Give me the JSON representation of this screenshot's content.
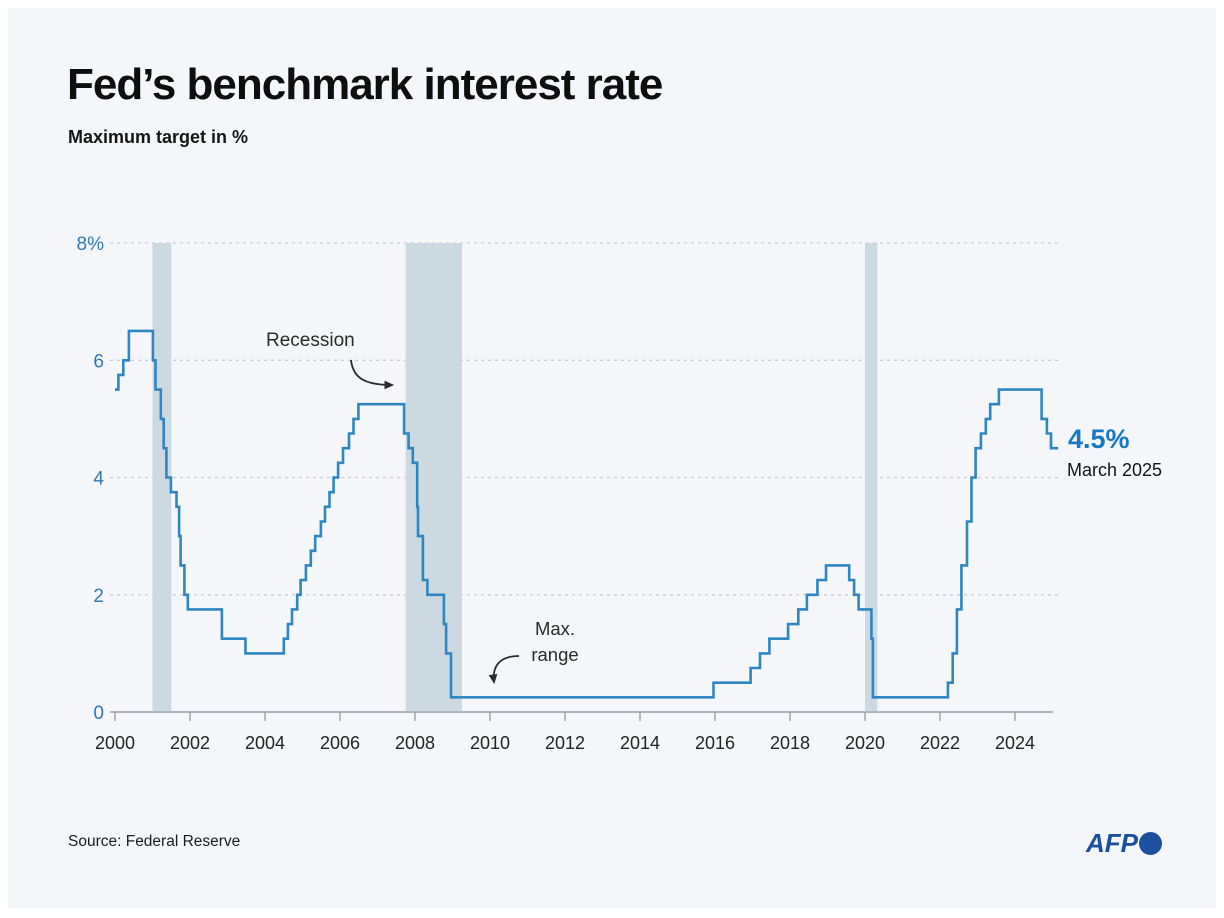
{
  "colors": {
    "background": "#f4f6f9",
    "frame": "#ffffff",
    "line": "#2e86c2",
    "band": "#cdd9e0",
    "grid": "#c9cdd3",
    "axis": "#9ca1a8",
    "y_label": "#3579b2",
    "x_label": "#242424",
    "text": "#1d1d1d",
    "accent": "#1779c6",
    "afp": "#1d4f9f"
  },
  "footer": {
    "source": "Source: Federal Reserve",
    "agency": "AFP"
  },
  "chart_data": {
    "type": "line",
    "step": true,
    "title": "Fed’s benchmark interest rate",
    "subtitle": "Maximum target in %",
    "xlabel": "",
    "ylabel": "Maximum target in %",
    "x_range": [
      2000,
      2025.2
    ],
    "y_range": [
      0,
      8
    ],
    "grid": "dashed-horizontal",
    "legend": "none",
    "y_ticks": [
      {
        "value": 8,
        "label": "8%"
      },
      {
        "value": 6,
        "label": "6"
      },
      {
        "value": 4,
        "label": "4"
      },
      {
        "value": 2,
        "label": "2"
      },
      {
        "value": 0,
        "label": "0"
      }
    ],
    "grid_values": [
      2,
      4,
      6,
      8
    ],
    "x_ticks": [
      2000,
      2002,
      2004,
      2006,
      2008,
      2010,
      2012,
      2014,
      2016,
      2018,
      2020,
      2022,
      2024
    ],
    "recession_bands": [
      [
        2001.0,
        2001.5
      ],
      [
        2007.75,
        2009.25
      ],
      [
        2020.0,
        2020.33
      ]
    ],
    "annotations": {
      "recession": "Recession",
      "max_range": [
        "Max.",
        "range"
      ],
      "latest_value": "4.5%",
      "latest_date": "March 2025"
    },
    "series": [
      {
        "name": "Fed benchmark interest rate (max target, %)",
        "points": [
          [
            2000.0,
            5.5
          ],
          [
            2000.09,
            5.75
          ],
          [
            2000.22,
            6.0
          ],
          [
            2000.37,
            6.5
          ],
          [
            2001.01,
            6.0
          ],
          [
            2001.08,
            5.5
          ],
          [
            2001.22,
            5.0
          ],
          [
            2001.3,
            4.5
          ],
          [
            2001.37,
            4.0
          ],
          [
            2001.49,
            3.75
          ],
          [
            2001.64,
            3.5
          ],
          [
            2001.71,
            3.0
          ],
          [
            2001.75,
            2.5
          ],
          [
            2001.85,
            2.0
          ],
          [
            2001.94,
            1.75
          ],
          [
            2002.85,
            1.25
          ],
          [
            2003.48,
            1.0
          ],
          [
            2004.5,
            1.25
          ],
          [
            2004.61,
            1.5
          ],
          [
            2004.72,
            1.75
          ],
          [
            2004.86,
            2.0
          ],
          [
            2004.95,
            2.25
          ],
          [
            2005.09,
            2.5
          ],
          [
            2005.22,
            2.75
          ],
          [
            2005.34,
            3.0
          ],
          [
            2005.49,
            3.25
          ],
          [
            2005.6,
            3.5
          ],
          [
            2005.72,
            3.75
          ],
          [
            2005.83,
            4.0
          ],
          [
            2005.95,
            4.25
          ],
          [
            2006.08,
            4.5
          ],
          [
            2006.24,
            4.75
          ],
          [
            2006.36,
            5.0
          ],
          [
            2006.49,
            5.25
          ],
          [
            2007.71,
            4.75
          ],
          [
            2007.83,
            4.5
          ],
          [
            2007.94,
            4.25
          ],
          [
            2008.06,
            3.5
          ],
          [
            2008.08,
            3.0
          ],
          [
            2008.21,
            2.25
          ],
          [
            2008.33,
            2.0
          ],
          [
            2008.77,
            1.5
          ],
          [
            2008.83,
            1.0
          ],
          [
            2008.96,
            0.25
          ],
          [
            2015.96,
            0.5
          ],
          [
            2016.95,
            0.75
          ],
          [
            2017.2,
            1.0
          ],
          [
            2017.45,
            1.25
          ],
          [
            2017.95,
            1.5
          ],
          [
            2018.22,
            1.75
          ],
          [
            2018.45,
            2.0
          ],
          [
            2018.73,
            2.25
          ],
          [
            2018.96,
            2.5
          ],
          [
            2019.58,
            2.25
          ],
          [
            2019.71,
            2.0
          ],
          [
            2019.83,
            1.75
          ],
          [
            2020.17,
            1.25
          ],
          [
            2020.21,
            0.25
          ],
          [
            2022.21,
            0.5
          ],
          [
            2022.34,
            1.0
          ],
          [
            2022.45,
            1.75
          ],
          [
            2022.57,
            2.5
          ],
          [
            2022.72,
            3.25
          ],
          [
            2022.84,
            4.0
          ],
          [
            2022.95,
            4.5
          ],
          [
            2023.09,
            4.75
          ],
          [
            2023.22,
            5.0
          ],
          [
            2023.34,
            5.25
          ],
          [
            2023.57,
            5.5
          ],
          [
            2024.71,
            5.0
          ],
          [
            2024.85,
            4.75
          ],
          [
            2024.96,
            4.5
          ],
          [
            2025.15,
            4.5
          ]
        ]
      }
    ]
  }
}
